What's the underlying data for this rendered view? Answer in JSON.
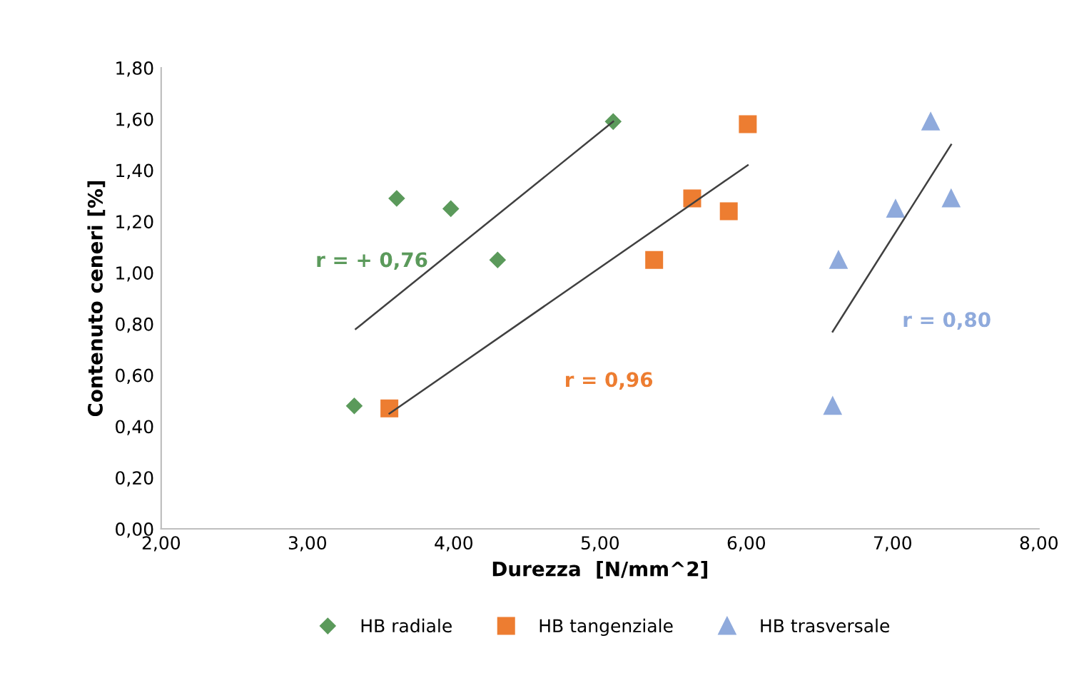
{
  "chart_data": {
    "type": "scatter",
    "xlabel": "Durezza  [N/mm^2]",
    "ylabel": "Contenuto ceneri [%]",
    "xlim": [
      2,
      8
    ],
    "ylim": [
      0,
      1.8
    ],
    "xticks": [
      {
        "value": 2,
        "label": "2,00"
      },
      {
        "value": 3,
        "label": "3,00"
      },
      {
        "value": 4,
        "label": "4,00"
      },
      {
        "value": 5,
        "label": "5,00"
      },
      {
        "value": 6,
        "label": "6,00"
      },
      {
        "value": 7,
        "label": "7,00"
      },
      {
        "value": 8,
        "label": "8,00"
      }
    ],
    "yticks": [
      {
        "value": 0,
        "label": "0,00"
      },
      {
        "value": 0.2,
        "label": "0,20"
      },
      {
        "value": 0.4,
        "label": "0,40"
      },
      {
        "value": 0.6,
        "label": "0,60"
      },
      {
        "value": 0.8,
        "label": "0,80"
      },
      {
        "value": 1.0,
        "label": "1,00"
      },
      {
        "value": 1.2,
        "label": "1,20"
      },
      {
        "value": 1.4,
        "label": "1,40"
      },
      {
        "value": 1.6,
        "label": "1,60"
      },
      {
        "value": 1.8,
        "label": "1,80"
      }
    ],
    "grid": false,
    "legend": "bottom",
    "series": [
      {
        "name": "HB radiale",
        "color": "#5b9a5b",
        "marker": "diamond",
        "x": [
          3.32,
          3.61,
          3.98,
          4.3,
          5.09
        ],
        "values": [
          0.48,
          1.29,
          1.25,
          1.05,
          1.59
        ]
      },
      {
        "name": "HB tangenziale",
        "color": "#ed7d31",
        "marker": "square",
        "x": [
          3.56,
          5.37,
          5.63,
          5.88,
          6.01
        ],
        "values": [
          0.47,
          1.05,
          1.29,
          1.24,
          1.58
        ]
      },
      {
        "name": "HB trasversale",
        "color": "#8faadc",
        "marker": "triangle",
        "x": [
          6.59,
          6.63,
          7.02,
          7.26,
          7.4
        ],
        "values": [
          0.48,
          1.05,
          1.25,
          1.59,
          1.29
        ]
      },
      {
        "type": "line",
        "color": "#404040",
        "x": [
          3.33,
          5.09
        ],
        "values": [
          0.78,
          1.59
        ]
      },
      {
        "type": "line",
        "color": "#404040",
        "x": [
          3.56,
          6.01
        ],
        "values": [
          0.45,
          1.42
        ]
      },
      {
        "type": "line",
        "color": "#404040",
        "x": [
          6.59,
          7.4
        ],
        "values": [
          0.77,
          1.5
        ]
      }
    ],
    "annotations": [
      "r = + 0,76",
      "r = 0,96",
      "r = 0,80"
    ]
  }
}
